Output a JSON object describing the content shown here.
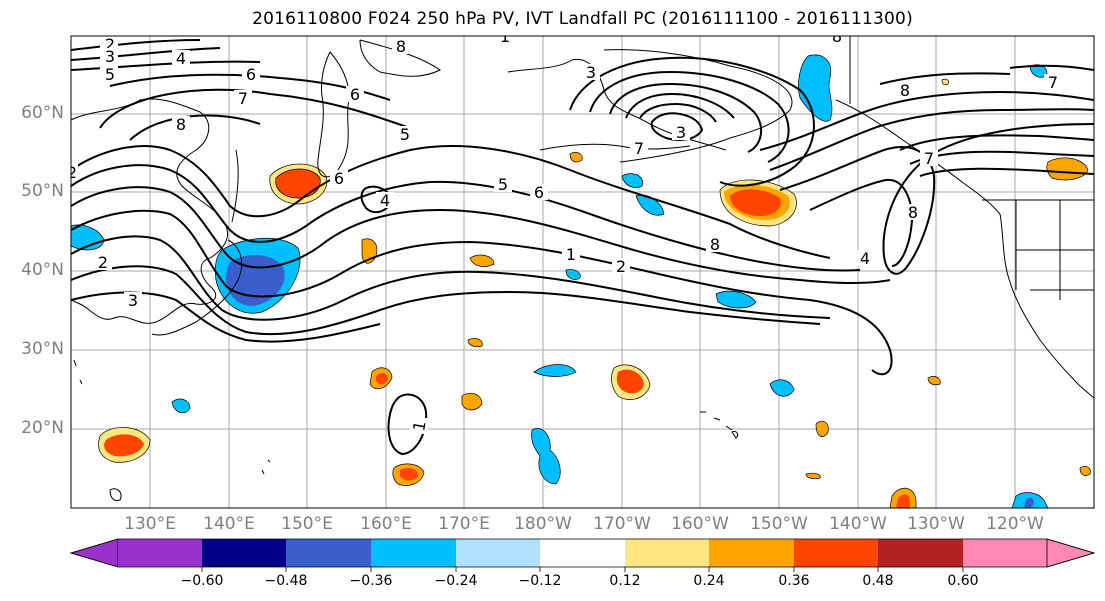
{
  "title": "2016110800 F024 250 hPa PV, IVT Landfall PC (2016111100 - 2016111300)",
  "map": {
    "lat_labels": [
      "60°N",
      "50°N",
      "40°N",
      "30°N",
      "20°N"
    ],
    "lon_labels": [
      "130°E",
      "140°E",
      "150°E",
      "160°E",
      "170°E",
      "180°W",
      "170°W",
      "160°W",
      "150°W",
      "140°W",
      "130°W",
      "120°W"
    ],
    "contour_labels": [
      "2",
      "3",
      "5",
      "4",
      "6",
      "7",
      "8",
      "6",
      "8",
      "3",
      "7",
      "8",
      "8",
      "7",
      "6",
      "5",
      "4",
      "2",
      "5",
      "6",
      "1",
      "2",
      "8",
      "4",
      "3",
      "2",
      "3",
      "1",
      "1",
      "8",
      "7"
    ]
  },
  "colorbar": {
    "ticks": [
      "−0.60",
      "−0.48",
      "−0.36",
      "−0.24",
      "−0.12",
      "0.12",
      "0.24",
      "0.36",
      "0.48",
      "0.60"
    ],
    "colors": {
      "under": "#9932cc",
      "bins": [
        "#00008b",
        "#3a5fcd",
        "#00bfff",
        "#b0e2ff",
        "#ffffff",
        "#ffe680",
        "#ffa500",
        "#ff4500",
        "#b22222"
      ],
      "over": "#ff88b4"
    }
  }
}
